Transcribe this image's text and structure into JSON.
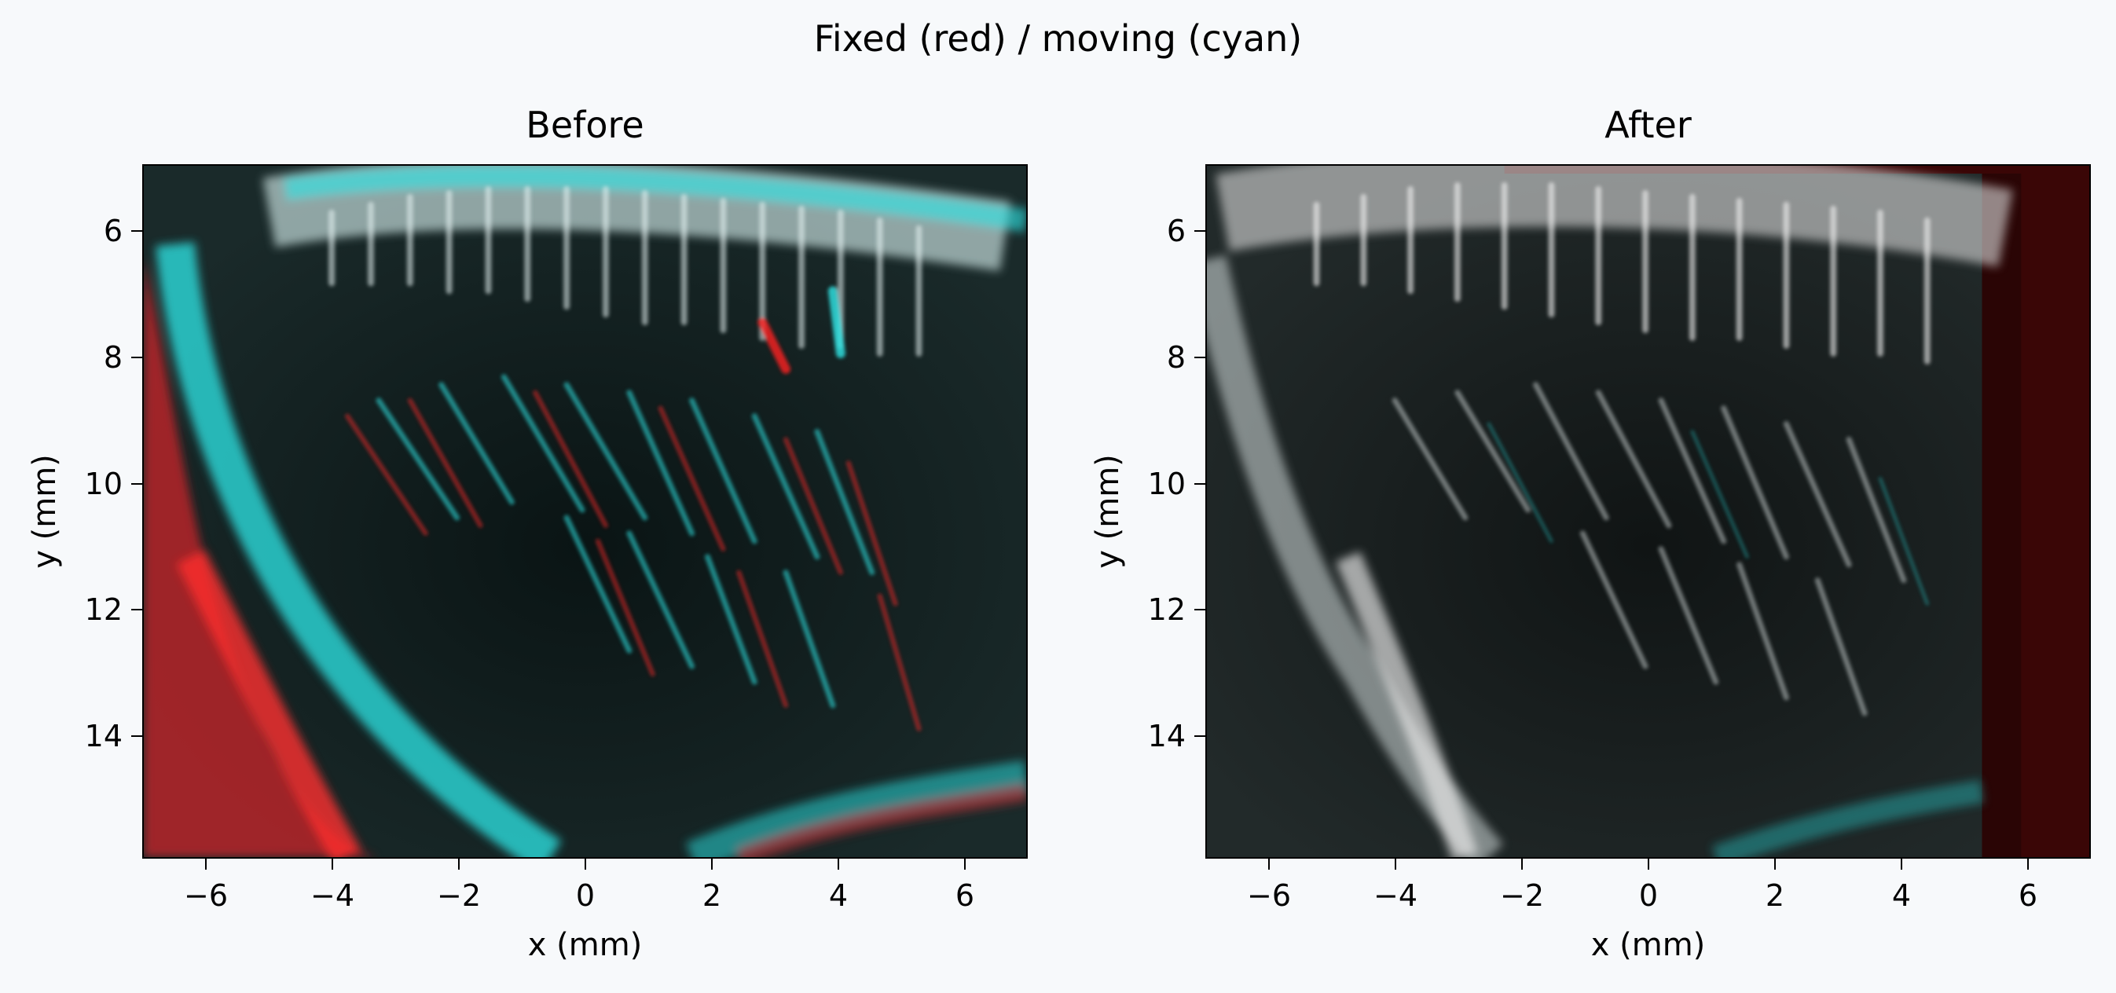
{
  "figure": {
    "title": "Fixed (red) / moving (cyan)"
  },
  "panels": [
    {
      "title": "Before",
      "xlabel": "x (mm)",
      "ylabel": "y (mm)",
      "xticks": [
        "−6",
        "−4",
        "−2",
        "0",
        "2",
        "4",
        "6"
      ],
      "yticks": [
        "6",
        "8",
        "10",
        "12",
        "14"
      ]
    },
    {
      "title": "After",
      "xlabel": "x (mm)",
      "ylabel": "y (mm)",
      "xticks": [
        "−6",
        "−4",
        "−2",
        "0",
        "2",
        "4",
        "6"
      ],
      "yticks": [
        "6",
        "8",
        "10",
        "12",
        "14"
      ]
    }
  ],
  "axes": {
    "xlim": [
      -7,
      7
    ],
    "ylim": [
      15.9,
      5.0
    ],
    "x_tick_values": [
      -6,
      -4,
      -2,
      0,
      2,
      4,
      6
    ],
    "y_tick_values": [
      6,
      8,
      10,
      12,
      14
    ]
  },
  "colors": {
    "fixed": "#ff2b2b",
    "moving": "#2ee8e8",
    "overlap": "#e6e6e6",
    "background": "#f7f9fb"
  }
}
